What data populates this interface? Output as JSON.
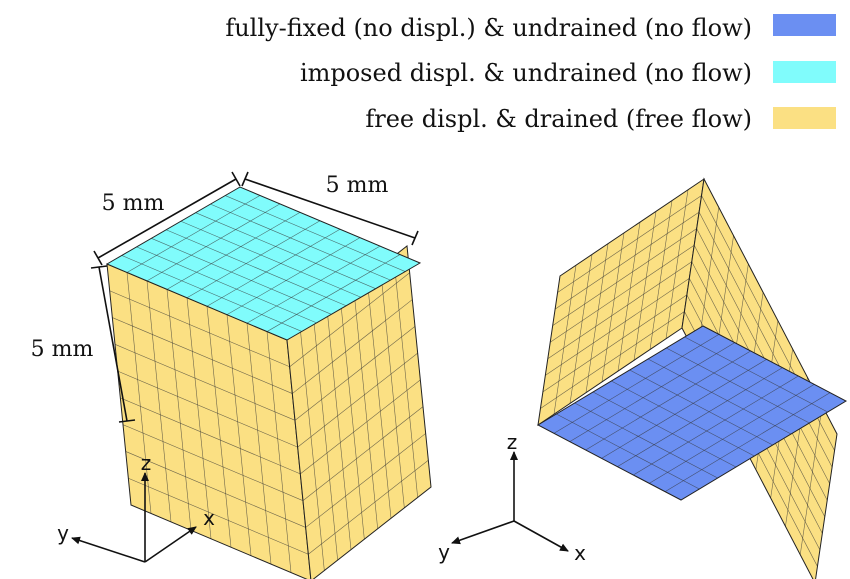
{
  "legend": {
    "items": [
      {
        "label": "fully-fixed (no displ.) & undrained (no flow)",
        "color": "#6b8ff2"
      },
      {
        "label": "imposed displ. & undrained (no flow)",
        "color": "#80fcfc"
      },
      {
        "label": "free displ. & drained (free flow)",
        "color": "#fbe083"
      }
    ]
  },
  "mesh": {
    "divisions": 9
  },
  "dimensions": {
    "top_left_edge": "5 mm",
    "top_right_edge": "5 mm",
    "height": "5 mm"
  },
  "axes_left": {
    "z": "z",
    "y": "y",
    "x": "x"
  },
  "axes_right": {
    "z": "z",
    "y": "y",
    "x": "x"
  },
  "cube_left": {
    "top_face": "imposed",
    "left_face": "free",
    "right_face": "free"
  },
  "cube_right": {
    "bottom_face": "fixed",
    "left_face": "free",
    "right_face": "free"
  }
}
